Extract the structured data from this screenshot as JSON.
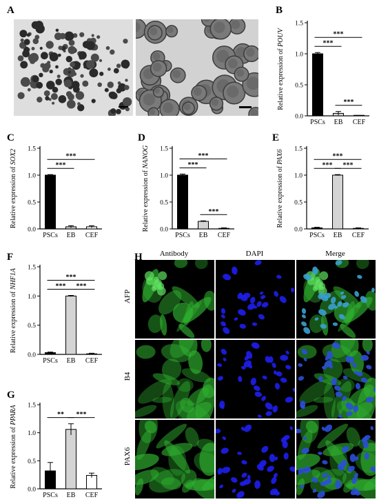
{
  "panel_labels": {
    "A": "A",
    "B": "B",
    "C": "C",
    "D": "D",
    "E": "E",
    "F": "F",
    "G": "G",
    "H": "H"
  },
  "colors": {
    "psc": "#000000",
    "eb": "#d4d4d4",
    "cef": "#ffffff",
    "green": "#2fae2f",
    "blue": "#1e1ef0"
  },
  "chart_data": [
    {
      "id": "B",
      "type": "bar",
      "categories": [
        "PSCs",
        "EB",
        "CEF"
      ],
      "values": [
        1.0,
        0.04,
        0.0
      ],
      "errors": [
        0.02,
        0.03,
        0.0
      ],
      "ylabel_prefix": "Relative expression of ",
      "gene": "POUV",
      "ylim": [
        0,
        1.5
      ],
      "yticks": [
        "0.0",
        "0.5",
        "1.0",
        "1.5"
      ],
      "sig": [
        {
          "from": 0,
          "to": 1,
          "label": "***"
        },
        {
          "from": 0,
          "to": 2,
          "label": "***"
        },
        {
          "from": 1,
          "to": 2,
          "label": "***"
        }
      ]
    },
    {
      "id": "C",
      "type": "bar",
      "categories": [
        "PSCs",
        "EB",
        "CEF"
      ],
      "values": [
        1.0,
        0.04,
        0.04
      ],
      "errors": [
        0.01,
        0.02,
        0.02
      ],
      "ylabel_prefix": "Relative expression of ",
      "gene": "SOX2",
      "ylim": [
        0,
        1.5
      ],
      "yticks": [
        "0.0",
        "0.5",
        "1.0",
        "1.5"
      ],
      "sig": [
        {
          "from": 0,
          "to": 1,
          "label": "***"
        },
        {
          "from": 0,
          "to": 2,
          "label": "***"
        }
      ]
    },
    {
      "id": "D",
      "type": "bar",
      "categories": [
        "PSCs",
        "EB",
        "CEF"
      ],
      "values": [
        1.0,
        0.14,
        0.01
      ],
      "errors": [
        0.02,
        0.01,
        0.01
      ],
      "ylabel_prefix": "Relative expression of ",
      "gene": "NANOG",
      "ylim": [
        0,
        1.5
      ],
      "yticks": [
        "0.0",
        "0.5",
        "1.0",
        "1.5"
      ],
      "sig": [
        {
          "from": 0,
          "to": 1,
          "label": "***"
        },
        {
          "from": 0,
          "to": 2,
          "label": "***"
        },
        {
          "from": 1,
          "to": 2,
          "label": "***"
        }
      ]
    },
    {
      "id": "E",
      "type": "bar",
      "categories": [
        "PSCs",
        "EB",
        "CEF"
      ],
      "values": [
        0.02,
        1.0,
        0.01
      ],
      "errors": [
        0.01,
        0.01,
        0.01
      ],
      "ylabel_prefix": "Relative expression of ",
      "gene": "PAX6",
      "ylim": [
        0,
        1.5
      ],
      "yticks": [
        "0.0",
        "0.5",
        "1.0",
        "1.5"
      ],
      "sig": [
        {
          "from": 0,
          "to": 1,
          "label": "***"
        },
        {
          "from": 0,
          "to": 2,
          "label": "***"
        },
        {
          "from": 1,
          "to": 2,
          "label": "***"
        }
      ]
    },
    {
      "id": "F",
      "type": "bar",
      "categories": [
        "PSCs",
        "EB",
        "CEF"
      ],
      "values": [
        0.03,
        1.0,
        0.01
      ],
      "errors": [
        0.01,
        0.01,
        0.01
      ],
      "ylabel_prefix": "Relative expression of ",
      "gene": "NHF1A",
      "ylim": [
        0,
        1.5
      ],
      "yticks": [
        "0.0",
        "0.5",
        "1.0",
        "1.5"
      ],
      "sig": [
        {
          "from": 0,
          "to": 1,
          "label": "***"
        },
        {
          "from": 0,
          "to": 2,
          "label": "***"
        },
        {
          "from": 1,
          "to": 2,
          "label": "***"
        }
      ]
    },
    {
      "id": "G",
      "type": "bar",
      "categories": [
        "PSCs",
        "EB",
        "CEF"
      ],
      "values": [
        0.32,
        1.06,
        0.24
      ],
      "errors": [
        0.15,
        0.1,
        0.04
      ],
      "ylabel_prefix": "Relative expression of ",
      "gene": "PPARA",
      "ylim": [
        0,
        1.5
      ],
      "yticks": [
        "0.0",
        "0.5",
        "1.0",
        "1.5"
      ],
      "sig": [
        {
          "from": 0,
          "to": 1,
          "label": "**"
        },
        {
          "from": 1,
          "to": 2,
          "label": "***"
        }
      ]
    }
  ],
  "micro": {
    "columns": [
      "Antibody",
      "DAPI",
      "Merge"
    ],
    "rows": [
      "AFP",
      "B4",
      "PAX6"
    ]
  }
}
